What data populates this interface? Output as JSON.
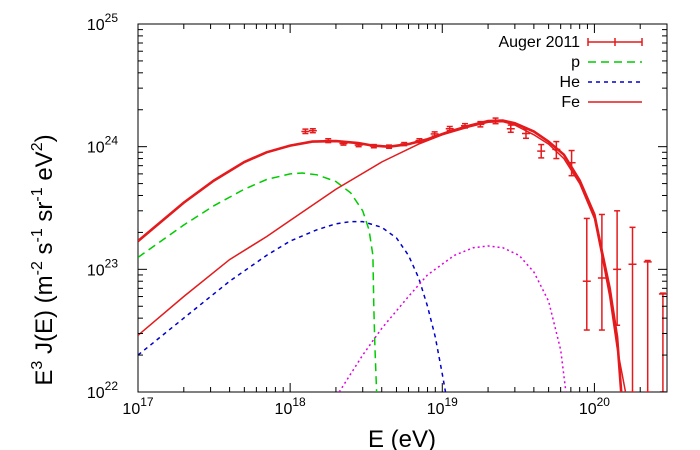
{
  "chart_data": {
    "type": "line",
    "xlabel": {
      "base": "E (eV)"
    },
    "ylabel": {
      "parts": [
        "E",
        "3",
        " J(E) (m",
        "-2",
        " s",
        "-1",
        " sr",
        "-1",
        " eV",
        "2",
        ")"
      ]
    },
    "x_scale": "log",
    "y_scale": "log",
    "xlim": [
      1e+17,
      3e+20
    ],
    "ylim": [
      1e+22,
      1e+25
    ],
    "x_ticks": [
      {
        "base": "10",
        "exp": "17",
        "value": 1e+17
      },
      {
        "base": "10",
        "exp": "18",
        "value": 1e+18
      },
      {
        "base": "10",
        "exp": "19",
        "value": 1e+19
      },
      {
        "base": "10",
        "exp": "20",
        "value": 1e+20
      }
    ],
    "y_ticks": [
      {
        "base": "10",
        "exp": "22",
        "value": 1e+22
      },
      {
        "base": "10",
        "exp": "23",
        "value": 1e+23
      },
      {
        "base": "10",
        "exp": "24",
        "value": 1e+24
      },
      {
        "base": "10",
        "exp": "25",
        "value": 1e+25
      }
    ],
    "grid": false,
    "legend_position": "top-right",
    "series": [
      {
        "name": "Auger 2011",
        "kind": "errorbar",
        "color": "#e41a1c",
        "points": [
          {
            "x": 1.26e+18,
            "y": 1.33e+24,
            "lo": 1.28e+24,
            "hi": 1.39e+24
          },
          {
            "x": 1.41e+18,
            "y": 1.35e+24,
            "lo": 1.3e+24,
            "hi": 1.4e+24
          },
          {
            "x": 1.78e+18,
            "y": 1.12e+24,
            "lo": 1.08e+24,
            "hi": 1.16e+24
          },
          {
            "x": 2.24e+18,
            "y": 1.06e+24,
            "lo": 1.03e+24,
            "hi": 1.09e+24
          },
          {
            "x": 2.82e+18,
            "y": 1.03e+24,
            "lo": 1e+24,
            "hi": 1.06e+24
          },
          {
            "x": 3.55e+18,
            "y": 1.01e+24,
            "lo": 9.8e+23,
            "hi": 1.04e+24
          },
          {
            "x": 4.47e+18,
            "y": 1e+24,
            "lo": 9.7e+23,
            "hi": 1.03e+24
          },
          {
            "x": 5.62e+18,
            "y": 1.05e+24,
            "lo": 1.02e+24,
            "hi": 1.08e+24
          },
          {
            "x": 7.08e+18,
            "y": 1.12e+24,
            "lo": 1.08e+24,
            "hi": 1.16e+24
          },
          {
            "x": 8.91e+18,
            "y": 1.27e+24,
            "lo": 1.22e+24,
            "hi": 1.32e+24
          },
          {
            "x": 1.12e+19,
            "y": 1.4e+24,
            "lo": 1.35e+24,
            "hi": 1.46e+24
          },
          {
            "x": 1.41e+19,
            "y": 1.48e+24,
            "lo": 1.42e+24,
            "hi": 1.54e+24
          },
          {
            "x": 1.78e+19,
            "y": 1.52e+24,
            "lo": 1.45e+24,
            "hi": 1.6e+24
          },
          {
            "x": 2.24e+19,
            "y": 1.62e+24,
            "lo": 1.54e+24,
            "hi": 1.71e+24
          },
          {
            "x": 2.82e+19,
            "y": 1.4e+24,
            "lo": 1.31e+24,
            "hi": 1.5e+24
          },
          {
            "x": 3.55e+19,
            "y": 1.28e+24,
            "lo": 1.17e+24,
            "hi": 1.4e+24
          },
          {
            "x": 4.47e+19,
            "y": 9.2e+23,
            "lo": 8.1e+23,
            "hi": 1.04e+24
          },
          {
            "x": 5.62e+19,
            "y": 9.5e+23,
            "lo": 8e+23,
            "hi": 1.1e+24
          },
          {
            "x": 7.08e+19,
            "y": 7.4e+23,
            "lo": 5.8e+23,
            "hi": 9.3e+23
          },
          {
            "x": 8.91e+19,
            "y": 8e+22,
            "lo": 3.2e+22,
            "hi": 2.6e+23
          },
          {
            "x": 1.12e+20,
            "y": 8.5e+22,
            "lo": 3.2e+22,
            "hi": 2.8e+23
          },
          {
            "x": 1.41e+20,
            "y": 1e+23,
            "lo": 3.5e+22,
            "hi": 3e+23
          },
          {
            "x": 1.78e+20,
            "y": 1.1e+23,
            "lo": 1e+22,
            "hi": 2.2e+23
          },
          {
            "x": 2.24e+20,
            "y": 1.15e+23,
            "lo": 1e+22,
            "hi": 1.18e+23
          },
          {
            "x": 2.82e+20,
            "y": 6.3e+22,
            "lo": 1e+22,
            "hi": 6.4e+22
          }
        ]
      },
      {
        "name": "",
        "kind": "line",
        "color": "#e41a1c",
        "dash": "none",
        "width": 2.6,
        "points": [
          [
            1e+17,
            1.7e+23
          ],
          [
            2e+17,
            3.5e+23
          ],
          [
            3.16e+17,
            5.3e+23
          ],
          [
            5e+17,
            7.5e+23
          ],
          [
            7e+17,
            9e+23
          ],
          [
            1e+18,
            1.02e+24
          ],
          [
            1.4e+18,
            1.1e+24
          ],
          [
            2e+18,
            1.11e+24
          ],
          [
            2.8e+18,
            1.07e+24
          ],
          [
            3.5e+18,
            1.02e+24
          ],
          [
            4.5e+18,
            1e+24
          ],
          [
            6e+18,
            1.05e+24
          ],
          [
            8e+18,
            1.15e+24
          ],
          [
            1.1e+19,
            1.32e+24
          ],
          [
            1.5e+19,
            1.48e+24
          ],
          [
            2e+19,
            1.62e+24
          ],
          [
            2.5e+19,
            1.63e+24
          ],
          [
            3e+19,
            1.55e+24
          ],
          [
            4e+19,
            1.33e+24
          ],
          [
            5e+19,
            1.1e+24
          ],
          [
            6.3e+19,
            8.6e+23
          ],
          [
            8e+19,
            5.3e+23
          ],
          [
            1e+20,
            2.8e+23
          ],
          [
            1.12e+20,
            1.4e+23
          ],
          [
            1.26e+20,
            7e+22
          ],
          [
            1.41e+20,
            2.8e+22
          ],
          [
            1.5e+20,
            1e+22
          ]
        ]
      },
      {
        "name": "p",
        "kind": "line",
        "color": "#00cc00",
        "dash": "8,5",
        "width": 1.5,
        "points": [
          [
            1e+17,
            1.25e+23
          ],
          [
            2e+17,
            2.3e+23
          ],
          [
            3.16e+17,
            3.3e+23
          ],
          [
            5e+17,
            4.5e+23
          ],
          [
            7e+17,
            5.4e+23
          ],
          [
            1e+18,
            6e+23
          ],
          [
            1.2e+18,
            6.1e+23
          ],
          [
            1.5e+18,
            5.9e+23
          ],
          [
            2e+18,
            5.2e+23
          ],
          [
            2.5e+18,
            4.2e+23
          ],
          [
            3e+18,
            3e+23
          ],
          [
            3.3e+18,
            2.1e+23
          ],
          [
            3.5e+18,
            1.3e+23
          ],
          [
            3.55e+18,
            5e+22
          ],
          [
            3.6e+18,
            2.5e+22
          ],
          [
            3.7e+18,
            1e+22
          ]
        ]
      },
      {
        "name": "He",
        "kind": "line",
        "color": "#0000cc",
        "dash": "4,4",
        "width": 1.5,
        "points": [
          [
            1e+17,
            2e+22
          ],
          [
            2e+17,
            4e+22
          ],
          [
            4e+17,
            8e+22
          ],
          [
            7e+17,
            1.3e+23
          ],
          [
            1e+18,
            1.7e+23
          ],
          [
            1.5e+18,
            2.1e+23
          ],
          [
            2e+18,
            2.35e+23
          ],
          [
            2.5e+18,
            2.45e+23
          ],
          [
            3e+18,
            2.45e+23
          ],
          [
            4e+18,
            2.2e+23
          ],
          [
            5e+18,
            1.8e+23
          ],
          [
            6e+18,
            1.3e+23
          ],
          [
            7e+18,
            8.5e+22
          ],
          [
            8e+18,
            5e+22
          ],
          [
            9e+18,
            2.8e+22
          ],
          [
            1e+19,
            1.4e+22
          ],
          [
            1.05e+19,
            1e+22
          ]
        ]
      },
      {
        "name": "",
        "kind": "line",
        "color": "#e000e0",
        "dash": "2,3",
        "width": 1.5,
        "points": [
          [
            2.1e+18,
            1e+22
          ],
          [
            3e+18,
            2e+22
          ],
          [
            4e+18,
            3.3e+22
          ],
          [
            6e+18,
            6e+22
          ],
          [
            8e+18,
            9e+22
          ],
          [
            1.2e+19,
            1.3e+23
          ],
          [
            1.6e+19,
            1.5e+23
          ],
          [
            2e+19,
            1.55e+23
          ],
          [
            2.5e+19,
            1.5e+23
          ],
          [
            3.2e+19,
            1.3e+23
          ],
          [
            4e+19,
            9.5e+22
          ],
          [
            5e+19,
            5.5e+22
          ],
          [
            6e+19,
            2.2e+22
          ],
          [
            6.5e+19,
            1e+22
          ]
        ]
      },
      {
        "name": "Fe",
        "kind": "line",
        "color": "#e41a1c",
        "dash": "none",
        "width": 1.5,
        "points": [
          [
            1e+17,
            2.9e+22
          ],
          [
            2e+17,
            6e+22
          ],
          [
            4e+17,
            1.2e+23
          ],
          [
            7e+17,
            1.85e+23
          ],
          [
            1e+18,
            2.5e+23
          ],
          [
            2e+18,
            4.5e+23
          ],
          [
            4e+18,
            7.5e+23
          ],
          [
            7e+18,
            1.05e+24
          ],
          [
            1e+19,
            1.25e+24
          ],
          [
            1.5e+19,
            1.45e+24
          ],
          [
            2e+19,
            1.58e+24
          ],
          [
            2.5e+19,
            1.6e+24
          ],
          [
            3e+19,
            1.5e+24
          ],
          [
            4e+19,
            1.25e+24
          ],
          [
            5e+19,
            1.05e+24
          ],
          [
            6.3e+19,
            8e+23
          ],
          [
            8e+19,
            5e+23
          ],
          [
            1e+20,
            2.6e+23
          ],
          [
            1.12e+20,
            1.3e+23
          ],
          [
            1.26e+20,
            6e+22
          ],
          [
            1.41e+20,
            2.3e+22
          ],
          [
            1.6e+20,
            1e+22
          ]
        ]
      }
    ],
    "legend": [
      {
        "label": "Auger 2011",
        "kind": "errorbar",
        "color": "#e41a1c",
        "dash": "none"
      },
      {
        "label": "p",
        "kind": "line",
        "color": "#00cc00",
        "dash": "8,5"
      },
      {
        "label": "He",
        "kind": "line",
        "color": "#0000cc",
        "dash": "4,4"
      },
      {
        "label": "Fe",
        "kind": "line",
        "color": "#e41a1c",
        "dash": "none"
      }
    ]
  }
}
